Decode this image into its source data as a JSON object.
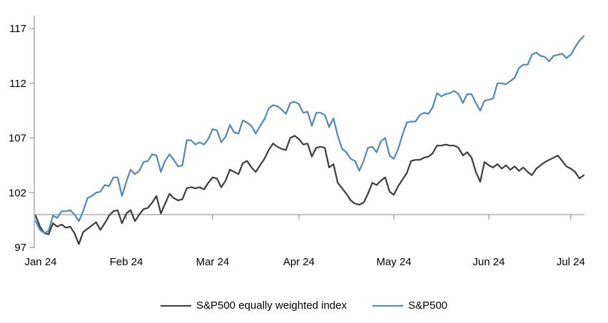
{
  "chart_data": {
    "type": "line",
    "title": "",
    "xlabel": "",
    "ylabel": "",
    "ylim": [
      97,
      117
    ],
    "yticks": [
      97,
      102,
      107,
      112,
      117
    ],
    "axis_cross_value": 100,
    "grid": "none",
    "legend_position": "bottom",
    "axis_color": "#a6a6a6",
    "x_count": 128,
    "x_tick_labels": [
      "Jan 24",
      "Feb 24",
      "Mar 24",
      "Apr 24",
      "May 24",
      "Jun 24",
      "Jul 24"
    ],
    "x_tick_day_indices": [
      0,
      21,
      41,
      61,
      83,
      105,
      124
    ],
    "series": [
      {
        "name": "S&P500 equally weighted index",
        "color": "#3b3b3b",
        "values": [
          99.9,
          98.9,
          98.3,
          98.2,
          99.2,
          98.9,
          99.1,
          98.8,
          98.9,
          98.3,
          97.3,
          98.4,
          98.7,
          99.0,
          99.3,
          98.6,
          99.2,
          99.9,
          100.3,
          100.4,
          99.2,
          100.1,
          100.4,
          99.4,
          100.0,
          100.5,
          100.6,
          101.1,
          101.7,
          100.1,
          101.0,
          101.9,
          101.5,
          101.3,
          101.4,
          102.4,
          102.5,
          102.4,
          102.5,
          102.3,
          102.9,
          103.4,
          103.3,
          102.5,
          103.1,
          104.1,
          103.9,
          103.7,
          104.7,
          104.9,
          104.3,
          103.9,
          104.5,
          105.1,
          105.9,
          106.5,
          106.2,
          106.0,
          105.9,
          107.0,
          107.2,
          106.9,
          106.4,
          106.5,
          105.3,
          106.1,
          106.2,
          106.1,
          104.3,
          104.6,
          102.9,
          102.4,
          101.9,
          101.3,
          101.0,
          100.9,
          101.1,
          101.9,
          102.9,
          102.7,
          103.1,
          103.4,
          102.1,
          101.8,
          102.6,
          103.2,
          103.8,
          104.9,
          105.0,
          105.0,
          105.2,
          105.3,
          105.6,
          106.3,
          106.3,
          106.4,
          106.3,
          106.3,
          106.1,
          105.4,
          105.7,
          105.2,
          103.9,
          103.0,
          104.8,
          104.5,
          104.3,
          104.6,
          104.2,
          104.5,
          104.1,
          104.4,
          104.0,
          104.3,
          103.9,
          103.6,
          104.2,
          104.5,
          104.8,
          105.0,
          105.2,
          105.4,
          104.9,
          104.4,
          104.2,
          103.9,
          103.3,
          103.6
        ]
      },
      {
        "name": "S&P500",
        "color": "#4e87bb",
        "values": [
          99.4,
          98.6,
          98.3,
          98.5,
          99.9,
          99.7,
          100.3,
          100.3,
          100.4,
          100.0,
          99.4,
          100.3,
          101.5,
          101.7,
          102.0,
          102.1,
          102.7,
          102.6,
          103.4,
          103.4,
          101.7,
          103.0,
          104.1,
          103.7,
          104.0,
          104.8,
          104.9,
          105.5,
          105.4,
          103.9,
          104.9,
          105.5,
          105.0,
          104.4,
          104.5,
          106.8,
          106.8,
          106.4,
          106.6,
          106.4,
          106.9,
          107.8,
          107.7,
          106.6,
          107.1,
          108.2,
          107.5,
          107.4,
          108.6,
          108.4,
          108.1,
          107.4,
          108.1,
          108.7,
          109.7,
          110.0,
          109.9,
          109.6,
          109.2,
          110.2,
          110.3,
          110.1,
          109.3,
          109.4,
          108.1,
          109.3,
          109.3,
          109.1,
          108.0,
          108.8,
          107.2,
          106.0,
          105.7,
          105.1,
          104.9,
          104.0,
          104.9,
          106.1,
          106.2,
          105.7,
          106.7,
          107.0,
          105.4,
          105.1,
          106.0,
          107.3,
          108.4,
          108.5,
          108.5,
          109.1,
          109.3,
          109.2,
          109.8,
          111.1,
          110.8,
          111.0,
          111.1,
          111.3,
          111.0,
          110.2,
          111.0,
          111.0,
          110.2,
          109.5,
          110.4,
          110.5,
          110.6,
          112.0,
          112.0,
          111.9,
          112.2,
          112.5,
          113.4,
          113.7,
          113.7,
          114.6,
          114.8,
          114.5,
          114.4,
          114.0,
          114.5,
          114.6,
          114.7,
          114.3,
          114.6,
          115.3,
          115.9,
          116.3
        ]
      }
    ]
  }
}
